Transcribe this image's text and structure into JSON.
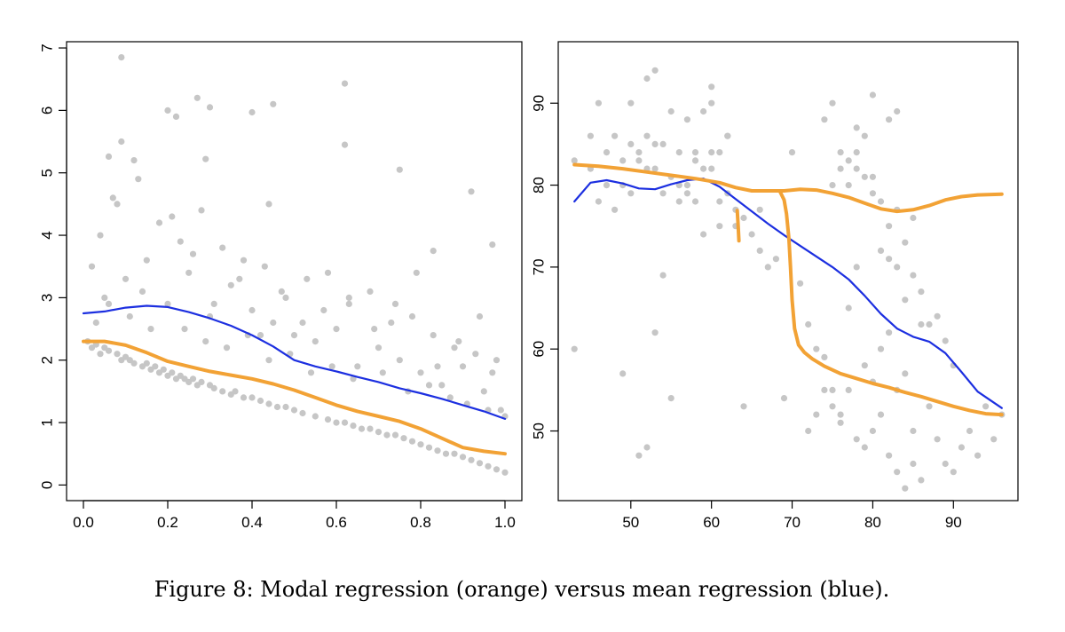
{
  "caption": "Figure 8: Modal regression (orange) versus mean regression (blue).",
  "colors": {
    "points": "#c6c6c6",
    "modal": "#f2a235",
    "mean": "#1c2fe0",
    "axis": "#000000"
  },
  "chart_data": [
    {
      "type": "scatter",
      "title": "",
      "xlabel": "",
      "ylabel": "",
      "xlim": [
        -0.04,
        1.04
      ],
      "ylim": [
        -0.25,
        7.1
      ],
      "xticks": [
        0.0,
        0.2,
        0.4,
        0.6,
        0.8,
        1.0
      ],
      "xtick_labels": [
        "0.0",
        "0.2",
        "0.4",
        "0.6",
        "0.8",
        "1.0"
      ],
      "yticks": [
        0,
        1,
        2,
        3,
        4,
        5,
        6,
        7
      ],
      "ytick_labels": [
        "0",
        "1",
        "2",
        "3",
        "4",
        "5",
        "6",
        "7"
      ],
      "scatter": {
        "x": [
          0.01,
          0.02,
          0.03,
          0.04,
          0.05,
          0.06,
          0.08,
          0.09,
          0.1,
          0.11,
          0.12,
          0.14,
          0.15,
          0.16,
          0.17,
          0.18,
          0.19,
          0.2,
          0.21,
          0.22,
          0.23,
          0.24,
          0.25,
          0.26,
          0.27,
          0.28,
          0.3,
          0.31,
          0.33,
          0.35,
          0.36,
          0.38,
          0.4,
          0.42,
          0.44,
          0.46,
          0.48,
          0.5,
          0.52,
          0.55,
          0.58,
          0.6,
          0.62,
          0.64,
          0.66,
          0.68,
          0.7,
          0.72,
          0.74,
          0.76,
          0.78,
          0.8,
          0.82,
          0.84,
          0.86,
          0.88,
          0.9,
          0.92,
          0.94,
          0.96,
          0.98,
          1.0,
          0.05,
          0.1,
          0.15,
          0.2,
          0.25,
          0.3,
          0.35,
          0.4,
          0.45,
          0.5,
          0.55,
          0.6,
          0.65,
          0.7,
          0.75,
          0.8,
          0.85,
          0.9,
          0.95,
          0.99,
          0.04,
          0.08,
          0.13,
          0.18,
          0.23,
          0.28,
          0.33,
          0.38,
          0.43,
          0.48,
          0.53,
          0.58,
          0.63,
          0.68,
          0.73,
          0.78,
          0.83,
          0.88,
          0.93,
          0.97,
          0.09,
          0.12,
          0.2,
          0.22,
          0.27,
          0.3,
          0.4,
          0.45,
          0.62,
          0.75,
          0.92,
          0.02,
          0.07,
          0.14,
          0.21,
          0.26,
          0.31,
          0.37,
          0.42,
          0.47,
          0.52,
          0.57,
          0.63,
          0.69,
          0.74,
          0.79,
          0.84,
          0.89,
          0.94,
          0.98,
          0.03,
          0.06,
          0.11,
          0.16,
          0.24,
          0.29,
          0.34,
          0.39,
          0.44,
          0.49,
          0.54,
          0.59,
          0.64,
          0.71,
          0.77,
          0.82,
          0.87,
          0.91,
          0.96,
          1.0
        ],
        "y": [
          2.3,
          2.2,
          2.25,
          2.1,
          2.2,
          2.15,
          2.1,
          2.0,
          2.05,
          2.0,
          1.95,
          1.9,
          1.95,
          1.85,
          1.9,
          1.8,
          1.85,
          1.75,
          1.8,
          1.7,
          1.75,
          1.7,
          1.65,
          1.7,
          1.6,
          1.65,
          1.6,
          1.55,
          1.5,
          1.45,
          1.5,
          1.4,
          1.4,
          1.35,
          1.3,
          1.25,
          1.25,
          1.2,
          1.15,
          1.1,
          1.05,
          1.0,
          1.0,
          0.95,
          0.9,
          0.9,
          0.85,
          0.8,
          0.8,
          0.75,
          0.7,
          0.65,
          0.6,
          0.55,
          0.5,
          0.5,
          0.45,
          0.4,
          0.35,
          0.3,
          0.25,
          0.2,
          3.0,
          3.3,
          3.6,
          2.9,
          3.4,
          2.7,
          3.2,
          2.8,
          2.6,
          2.4,
          2.3,
          2.5,
          1.9,
          2.2,
          2.0,
          1.8,
          1.6,
          1.9,
          1.5,
          1.2,
          4.0,
          4.5,
          4.9,
          4.2,
          3.9,
          4.4,
          3.8,
          3.6,
          3.5,
          3.0,
          3.3,
          3.4,
          2.9,
          3.1,
          2.6,
          2.7,
          2.4,
          2.2,
          2.1,
          1.8,
          5.5,
          5.2,
          6.0,
          5.9,
          6.2,
          6.05,
          5.97,
          6.1,
          6.43,
          5.05,
          4.7,
          3.5,
          4.6,
          3.1,
          4.3,
          3.7,
          2.9,
          3.3,
          2.4,
          3.1,
          2.6,
          2.8,
          3.0,
          2.5,
          2.9,
          3.4,
          1.9,
          2.3,
          2.7,
          2.0,
          2.6,
          2.9,
          2.7,
          2.5,
          2.5,
          2.3,
          2.2,
          2.4,
          2.0,
          2.1,
          1.8,
          1.9,
          1.7,
          1.8,
          1.5,
          1.6,
          1.4,
          1.3,
          1.2,
          1.1
        ],
        "extra": [
          [
            0.09,
            6.85
          ],
          [
            0.62,
            5.45
          ],
          [
            0.29,
            5.22
          ],
          [
            0.06,
            5.26
          ],
          [
            0.83,
            3.75
          ],
          [
            0.97,
            3.85
          ],
          [
            0.44,
            4.5
          ]
        ]
      },
      "series": [
        {
          "name": "mean",
          "x": [
            0.0,
            0.05,
            0.1,
            0.15,
            0.2,
            0.25,
            0.3,
            0.35,
            0.4,
            0.45,
            0.5,
            0.55,
            0.6,
            0.65,
            0.7,
            0.75,
            0.8,
            0.85,
            0.9,
            0.95,
            1.0
          ],
          "y": [
            2.75,
            2.78,
            2.84,
            2.87,
            2.85,
            2.77,
            2.67,
            2.55,
            2.4,
            2.22,
            2.0,
            1.9,
            1.82,
            1.73,
            1.65,
            1.55,
            1.47,
            1.38,
            1.28,
            1.18,
            1.06
          ]
        },
        {
          "name": "modal",
          "x": [
            0.0,
            0.05,
            0.1,
            0.15,
            0.2,
            0.25,
            0.3,
            0.35,
            0.4,
            0.45,
            0.5,
            0.55,
            0.6,
            0.65,
            0.7,
            0.75,
            0.8,
            0.85,
            0.9,
            0.95,
            1.0
          ],
          "y": [
            2.3,
            2.3,
            2.24,
            2.12,
            1.98,
            1.9,
            1.82,
            1.76,
            1.7,
            1.62,
            1.52,
            1.4,
            1.28,
            1.18,
            1.1,
            1.02,
            0.9,
            0.75,
            0.6,
            0.54,
            0.5
          ]
        }
      ]
    },
    {
      "type": "scatter",
      "title": "",
      "xlabel": "",
      "ylabel": "",
      "xlim": [
        41,
        98
      ],
      "ylim": [
        41.5,
        97.5
      ],
      "xticks": [
        50,
        60,
        70,
        80,
        90
      ],
      "xtick_labels": [
        "50",
        "60",
        "70",
        "80",
        "90"
      ],
      "yticks": [
        50,
        60,
        70,
        80,
        90
      ],
      "ytick_labels": [
        "50",
        "60",
        "70",
        "80",
        "90"
      ],
      "scatter": {
        "x": [
          43,
          45,
          46,
          47,
          48,
          49,
          50,
          50,
          51,
          52,
          52,
          53,
          53,
          54,
          55,
          56,
          57,
          58,
          59,
          60,
          60,
          61,
          62,
          63,
          43,
          49,
          51,
          52,
          53,
          54,
          55,
          56,
          57,
          58,
          59,
          60,
          61,
          62,
          64,
          66,
          69,
          70,
          71,
          72,
          73,
          74,
          75,
          76,
          77,
          78,
          79,
          80,
          81,
          82,
          83,
          84,
          85,
          86,
          87,
          88,
          89,
          90,
          91,
          92,
          93,
          94,
          95,
          96,
          75,
          76,
          77,
          78,
          79,
          80,
          81,
          82,
          83,
          84,
          85,
          74,
          75,
          76,
          77,
          78,
          79,
          80,
          81,
          82,
          83,
          84,
          85,
          86,
          87,
          88,
          89,
          90,
          72,
          73,
          74,
          75,
          76,
          77,
          78,
          79,
          80,
          81,
          82,
          83,
          84,
          85,
          86,
          45,
          46,
          47,
          48,
          49,
          50,
          51,
          52,
          53,
          54,
          55,
          56,
          57,
          58,
          59,
          60,
          61,
          62,
          63,
          64,
          65,
          66,
          67,
          68,
          78,
          80,
          82,
          83
        ],
        "y": [
          60,
          86,
          90,
          84,
          86,
          83,
          85,
          90,
          84,
          86,
          93,
          82,
          94,
          85,
          89,
          84,
          88,
          78,
          89,
          92,
          90,
          84,
          86,
          75,
          83,
          57,
          47,
          48,
          62,
          69,
          54,
          80,
          79,
          84,
          74,
          82,
          75,
          86,
          53,
          77,
          54,
          84,
          68,
          63,
          60,
          59,
          55,
          52,
          65,
          70,
          58,
          56,
          60,
          62,
          55,
          57,
          50,
          63,
          53,
          49,
          46,
          45,
          48,
          50,
          47,
          53,
          49,
          52,
          80,
          82,
          83,
          84,
          81,
          79,
          78,
          75,
          77,
          73,
          76,
          88,
          90,
          84,
          80,
          82,
          86,
          81,
          72,
          71,
          70,
          66,
          69,
          67,
          63,
          64,
          61,
          58,
          50,
          52,
          55,
          53,
          51,
          55,
          49,
          48,
          50,
          52,
          47,
          45,
          43,
          46,
          44,
          82,
          78,
          80,
          77,
          80,
          79,
          83,
          82,
          85,
          79,
          81,
          78,
          80,
          83,
          82,
          84,
          78,
          79,
          77,
          76,
          74,
          72,
          70,
          71,
          87,
          91,
          88,
          89
        ]
      },
      "series": [
        {
          "name": "mean",
          "x": [
            43,
            45,
            47,
            49,
            51,
            53,
            55,
            57,
            59,
            61,
            63,
            65,
            67,
            69,
            71,
            73,
            75,
            77,
            79,
            81,
            83,
            85,
            87,
            89,
            91,
            93,
            96
          ],
          "y": [
            78,
            80.3,
            80.6,
            80.2,
            79.6,
            79.5,
            80.1,
            80.6,
            80.8,
            79.8,
            78.3,
            76.8,
            75.3,
            73.9,
            72.6,
            71.3,
            70,
            68.5,
            66.5,
            64.3,
            62.5,
            61.5,
            60.9,
            59.5,
            57.2,
            54.8,
            52.8
          ]
        },
        {
          "name": "modal",
          "x": [
            43,
            46,
            49,
            52,
            55,
            58,
            61,
            63,
            65,
            67,
            69,
            71,
            73,
            75,
            77,
            79,
            81,
            83,
            85,
            87,
            89,
            91,
            93,
            96
          ],
          "y": [
            82.5,
            82.3,
            82,
            81.6,
            81.2,
            80.8,
            80.3,
            79.7,
            79.3,
            79.3,
            79.3,
            79.5,
            79.4,
            79,
            78.5,
            77.8,
            77.1,
            76.8,
            77,
            77.5,
            78.2,
            78.6,
            78.8,
            78.9
          ]
        },
        {
          "name": "modal",
          "x": [
            68.5,
            69.0,
            69.3,
            69.6,
            69.8,
            70.0,
            70.3,
            70.8,
            71.5,
            72.5,
            74,
            76,
            78,
            80,
            82,
            84,
            86,
            88,
            90,
            92,
            94,
            96
          ],
          "y": [
            79.2,
            78.2,
            76.5,
            73.5,
            70,
            66,
            62.5,
            60.5,
            59.6,
            58.8,
            57.9,
            57.0,
            56.4,
            55.8,
            55.3,
            54.7,
            54.2,
            53.6,
            53.0,
            52.5,
            52.1,
            52.0
          ]
        },
        {
          "name": "modal",
          "x": [
            63.2,
            63.3,
            63.4
          ],
          "y": [
            76.9,
            75.1,
            73.2
          ]
        }
      ]
    }
  ]
}
